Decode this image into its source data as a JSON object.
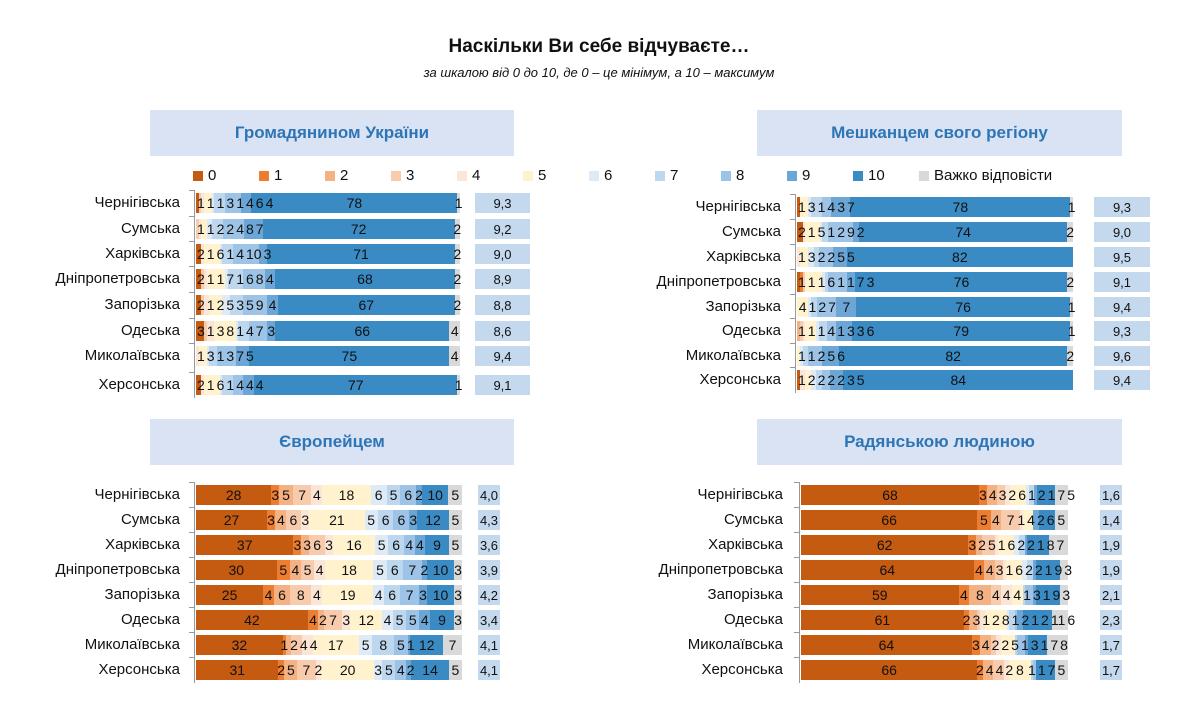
{
  "header": {
    "title": "Наскільки Ви себе відчуваєте…",
    "subtitle": "за шкалою від 0 до 10, де 0 – це мінімум, а 10 – максимум"
  },
  "legend": [
    "0",
    "1",
    "2",
    "3",
    "4",
    "5",
    "6",
    "7",
    "8",
    "9",
    "10",
    "Важко відповісти"
  ],
  "colors": [
    "#c55a11",
    "#ed7d31",
    "#f4b183",
    "#f8cbad",
    "#fbe5d6",
    "#fff2cc",
    "#deebf7",
    "#bdd7ee",
    "#9dc3e6",
    "#6ba6d6",
    "#3a8bc4",
    "#d9d9d9"
  ],
  "chart_data": [
    {
      "type": "bar",
      "stacked": true,
      "orientation": "horizontal",
      "title": "Громадянином України",
      "categories": [
        "Чернігівська",
        "Сумська",
        "Харківська",
        "Дніпропетровська",
        "Запорізька",
        "Одеська",
        "Миколаївська",
        "Херсонська"
      ],
      "values": [
        [
          1,
          0,
          0,
          1,
          1,
          3,
          1,
          4,
          6,
          4,
          78,
          1
        ],
        [
          0,
          0,
          0,
          1,
          1,
          2,
          2,
          4,
          8,
          7,
          72,
          2
        ],
        [
          2,
          0,
          0,
          0,
          1,
          6,
          1,
          4,
          10,
          3,
          71,
          2
        ],
        [
          2,
          0,
          0,
          1,
          1,
          7,
          1,
          6,
          8,
          4,
          68,
          2
        ],
        [
          2,
          0,
          0,
          1,
          2,
          5,
          3,
          5,
          9,
          4,
          67,
          2
        ],
        [
          3,
          0,
          0,
          1,
          3,
          8,
          1,
          4,
          7,
          3,
          66,
          4
        ],
        [
          0,
          0,
          0,
          0,
          1,
          3,
          1,
          3,
          7,
          5,
          75,
          4
        ],
        [
          2,
          0,
          0,
          0,
          1,
          6,
          1,
          4,
          4,
          4,
          77,
          1
        ]
      ],
      "means": [
        "9,3",
        "9,2",
        "9,0",
        "8,9",
        "8,8",
        "8,6",
        "9,4",
        "9,1"
      ]
    },
    {
      "type": "bar",
      "stacked": true,
      "orientation": "horizontal",
      "title": "Мешканцем свого регіону",
      "categories": [
        "Чернігівська",
        "Сумська",
        "Харківська",
        "Дніпропетровська",
        "Запорізька",
        "Одеська",
        "Миколаївська",
        "Херсонська"
      ],
      "values": [
        [
          1,
          0,
          0,
          0,
          0,
          3,
          1,
          4,
          3,
          7,
          78,
          1
        ],
        [
          2,
          0,
          0,
          0,
          1,
          5,
          1,
          2,
          9,
          2,
          74,
          2
        ],
        [
          0,
          0,
          0,
          0,
          1,
          3,
          2,
          2,
          5,
          5,
          82,
          0
        ],
        [
          1,
          1,
          0,
          1,
          0,
          6,
          1,
          1,
          7,
          3,
          76,
          2
        ],
        [
          0,
          0,
          0,
          0,
          0,
          4,
          1,
          2,
          7,
          7,
          76,
          1
        ],
        [
          0,
          0,
          1,
          1,
          1,
          4,
          1,
          3,
          3,
          6,
          79,
          1
        ],
        [
          0,
          0,
          0,
          0,
          0,
          1,
          1,
          2,
          5,
          6,
          82,
          2
        ],
        [
          1,
          0,
          0,
          0,
          2,
          2,
          2,
          2,
          3,
          5,
          84,
          0
        ]
      ],
      "means": [
        "9,3",
        "9,0",
        "9,5",
        "9,1",
        "9,4",
        "9,3",
        "9,6",
        "9,4"
      ]
    },
    {
      "type": "bar",
      "stacked": true,
      "orientation": "horizontal",
      "title": "Європейцем",
      "categories": [
        "Чернігівська",
        "Сумська",
        "Харківська",
        "Дніпропетровська",
        "Запорізька",
        "Одеська",
        "Миколаївська",
        "Херсонська"
      ],
      "values": [
        [
          28,
          3,
          5,
          7,
          4,
          18,
          6,
          5,
          6,
          2,
          10,
          5
        ],
        [
          27,
          3,
          4,
          6,
          3,
          21,
          5,
          6,
          6,
          3,
          12,
          5
        ],
        [
          37,
          3,
          3,
          6,
          3,
          16,
          5,
          6,
          4,
          4,
          9,
          5
        ],
        [
          30,
          5,
          4,
          5,
          4,
          18,
          5,
          6,
          7,
          2,
          10,
          3
        ],
        [
          25,
          4,
          6,
          8,
          4,
          19,
          4,
          6,
          7,
          3,
          10,
          3
        ],
        [
          42,
          4,
          2,
          7,
          3,
          12,
          4,
          5,
          5,
          4,
          9,
          3
        ],
        [
          32,
          1,
          2,
          4,
          4,
          17,
          5,
          8,
          5,
          1,
          12,
          7
        ],
        [
          31,
          2,
          5,
          7,
          2,
          20,
          3,
          5,
          4,
          2,
          14,
          5
        ]
      ],
      "means": [
        "4,0",
        "4,3",
        "3,6",
        "3,9",
        "4,2",
        "3,4",
        "4,1",
        "4,1"
      ]
    },
    {
      "type": "bar",
      "stacked": true,
      "orientation": "horizontal",
      "title": "Радянською людиною",
      "categories": [
        "Чернігівська",
        "Сумська",
        "Харківська",
        "Дніпропетровська",
        "Запорізька",
        "Одеська",
        "Миколаївська",
        "Херсонська"
      ],
      "values": [
        [
          68,
          3,
          4,
          3,
          2,
          6,
          1,
          2,
          0,
          1,
          7,
          5
        ],
        [
          66,
          5,
          4,
          7,
          1,
          4,
          0,
          0,
          0,
          2,
          6,
          5
        ],
        [
          62,
          3,
          2,
          5,
          1,
          6,
          2,
          2,
          0,
          1,
          8,
          7
        ],
        [
          64,
          4,
          4,
          3,
          1,
          6,
          2,
          2,
          0,
          1,
          9,
          3
        ],
        [
          59,
          4,
          8,
          4,
          4,
          4,
          0,
          1,
          3,
          1,
          9,
          3
        ],
        [
          61,
          2,
          3,
          1,
          2,
          8,
          1,
          2,
          1,
          2,
          11,
          6
        ],
        [
          64,
          3,
          4,
          2,
          2,
          5,
          0,
          1,
          3,
          1,
          7,
          8
        ],
        [
          66,
          2,
          4,
          4,
          2,
          8,
          0,
          1,
          1,
          0,
          7,
          5
        ]
      ],
      "means": [
        "1,6",
        "1,4",
        "1,9",
        "1,9",
        "2,1",
        "2,3",
        "1,7",
        "1,7"
      ]
    }
  ]
}
